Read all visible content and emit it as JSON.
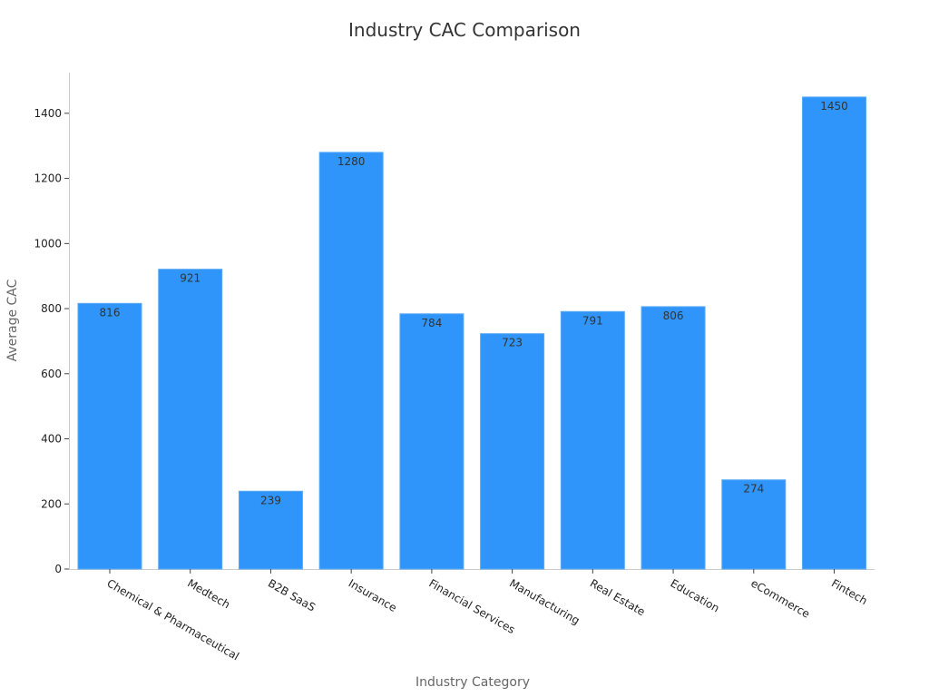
{
  "chart_data": {
    "type": "bar",
    "title": "Industry CAC Comparison",
    "xlabel": "Industry Category",
    "ylabel": "Average CAC",
    "categories": [
      "Chemical & Pharmaceutical",
      "Medtech",
      "B2B SaaS",
      "Insurance",
      "Financial Services",
      "Manufacturing",
      "Real Estate",
      "Education",
      "eCommerce",
      "Fintech"
    ],
    "values": [
      816,
      921,
      239,
      1280,
      784,
      723,
      791,
      806,
      274,
      1450
    ],
    "yticks": [
      0,
      200,
      400,
      600,
      800,
      1000,
      1200,
      1400
    ],
    "ylim": [
      0,
      1525
    ],
    "grid": false,
    "legend": "none",
    "bar_color": "#2f95fa",
    "bar_edge_color": "#5aaaf5"
  }
}
